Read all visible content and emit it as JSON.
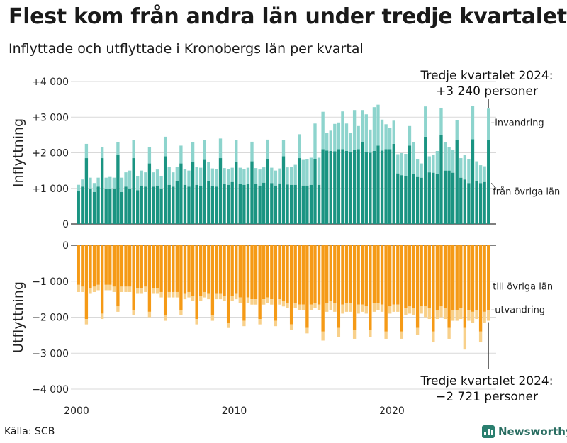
{
  "title": "Flest kom från andra län under tredje kvartalet",
  "subtitle": "Inflyttade och utflyttade i Kronobergs län per kvartal",
  "source": "Källa: SCB",
  "brand": "Newsworthy",
  "colors": {
    "in_other_counties": "#1a9482",
    "in_immigration": "#8dd4cd",
    "out_other_counties": "#f59a16",
    "out_emigration": "#f8d08a",
    "grid": "#d9d9d9"
  },
  "chart_data": {
    "type": "bar",
    "stacked": true,
    "x_start_year": 2000,
    "x_tick_labels": [
      "2000",
      "2010",
      "2020"
    ],
    "panels": [
      {
        "name": "Inflyttning",
        "ylabel": "Inflyttning",
        "ylim": [
          0,
          4000
        ],
        "y_ticks": [
          0,
          1000,
          2000,
          3000,
          4000
        ],
        "y_tick_labels": [
          "0",
          "+1 000",
          "+2 000",
          "+3 000",
          "+4 000"
        ],
        "series": [
          {
            "name": "från övriga län",
            "color": "#1a9482",
            "values": [
              920,
              1050,
              1850,
              1000,
              900,
              1050,
              1850,
              980,
              990,
              1000,
              1950,
              900,
              1050,
              1000,
              1850,
              950,
              1080,
              1050,
              1700,
              1050,
              1080,
              1000,
              1900,
              1100,
              1050,
              1200,
              1700,
              1100,
              1050,
              1750,
              1100,
              1080,
              1800,
              1200,
              1060,
              1050,
              1850,
              1120,
              1100,
              1180,
              1750,
              1130,
              1100,
              1130,
              1760,
              1120,
              1080,
              1160,
              1820,
              1150,
              1080,
              1140,
              1900,
              1110,
              1100,
              1100,
              1850,
              1080,
              1080,
              1100,
              1820,
              1100,
              2100,
              2060,
              2050,
              2040,
              2100,
              2100,
              2050,
              2010,
              2080,
              2100,
              2300,
              2020,
              2000,
              2050,
              2200,
              2060,
              2100,
              2100,
              2250,
              1420,
              1370,
              1340,
              2200,
              1400,
              1320,
              1300,
              2450,
              1450,
              1440,
              1400,
              2500,
              1500,
              1500,
              1440,
              2350,
              1300,
              1250,
              1150,
              2380,
              1200,
              1150,
              1180,
              2360
            ]
          },
          {
            "name": "invandring",
            "color": "#8dd4cd",
            "values": [
              180,
              200,
              400,
              300,
              250,
              250,
              300,
              320,
              330,
              300,
              350,
              400,
              400,
              500,
              500,
              400,
              420,
              400,
              450,
              400,
              450,
              350,
              550,
              500,
              400,
              400,
              500,
              450,
              450,
              550,
              500,
              500,
              550,
              550,
              500,
              500,
              550,
              450,
              450,
              400,
              600,
              450,
              450,
              450,
              550,
              450,
              450,
              430,
              550,
              430,
              420,
              420,
              450,
              480,
              500,
              560,
              670,
              720,
              750,
              760,
              1000,
              760,
              1050,
              500,
              570,
              770,
              750,
              1060,
              770,
              550,
              1120,
              650,
              900,
              1060,
              650,
              1230,
              1150,
              870,
              700,
              600,
              650,
              540,
              620,
              630,
              550,
              890,
              500,
              400,
              850,
              450,
              500,
              650,
              750,
              800,
              650,
              650,
              570,
              550,
              700,
              670,
              930,
              560,
              500,
              440,
              880
            ]
          }
        ],
        "annotations": [
          {
            "text": "invandring"
          },
          {
            "text": "från övriga län"
          }
        ],
        "callout": {
          "line1": "Tredje kvartalet 2024:",
          "line2": "+3 240 personer"
        }
      },
      {
        "name": "Utflyttning",
        "ylabel": "Utflyttning",
        "ylim": [
          -4000,
          0
        ],
        "y_ticks": [
          0,
          -1000,
          -2000,
          -3000,
          -4000
        ],
        "y_tick_labels": [
          "0",
          "−1 000",
          "−2 000",
          "−3 000",
          "−4 000"
        ],
        "series": [
          {
            "name": "till övriga län",
            "color": "#f59a16",
            "values": [
              -1100,
              -1150,
              -2050,
              -1200,
              -1150,
              -1100,
              -1900,
              -1100,
              -1100,
              -1150,
              -1700,
              -1150,
              -1150,
              -1150,
              -1800,
              -1200,
              -1200,
              -1150,
              -1850,
              -1200,
              -1200,
              -1300,
              -1950,
              -1300,
              -1300,
              -1300,
              -1800,
              -1350,
              -1300,
              -1400,
              -2050,
              -1400,
              -1300,
              -1350,
              -1950,
              -1350,
              -1350,
              -1400,
              -2150,
              -1400,
              -1350,
              -1450,
              -2100,
              -1450,
              -1500,
              -1500,
              -2050,
              -1500,
              -1450,
              -1500,
              -2100,
              -1500,
              -1550,
              -1600,
              -2200,
              -1600,
              -1650,
              -1650,
              -2300,
              -1650,
              -1600,
              -1650,
              -2400,
              -1600,
              -1550,
              -1600,
              -2300,
              -1650,
              -1600,
              -1600,
              -2350,
              -1650,
              -1650,
              -1700,
              -2350,
              -1600,
              -1600,
              -1650,
              -2400,
              -1700,
              -1650,
              -1650,
              -2400,
              -1750,
              -1700,
              -1750,
              -2300,
              -1700,
              -1700,
              -1750,
              -2400,
              -1800,
              -1700,
              -1750,
              -2300,
              -1800,
              -1800,
              -1750,
              -2300,
              -1800,
              -1850,
              -1800,
              -2400,
              -1850,
              -1800,
              -1750,
              -2300
            ]
          },
          {
            "name": "utvandring",
            "color": "#f8d08a",
            "values": [
              -200,
              -150,
              -150,
              -150,
              -150,
              -150,
              -150,
              -150,
              -150,
              -150,
              -150,
              -150,
              -150,
              -150,
              -150,
              -150,
              -150,
              -150,
              -150,
              -150,
              -150,
              -150,
              -150,
              -150,
              -150,
              -150,
              -150,
              -150,
              -150,
              -150,
              -150,
              -150,
              -150,
              -150,
              -150,
              -150,
              -150,
              -150,
              -150,
              -150,
              -150,
              -150,
              -150,
              -150,
              -150,
              -150,
              -150,
              -150,
              -150,
              -150,
              -150,
              -150,
              -150,
              -150,
              -150,
              -150,
              -150,
              -150,
              -150,
              -150,
              -150,
              -150,
              -250,
              -250,
              -250,
              -250,
              -250,
              -250,
              -250,
              -250,
              -250,
              -250,
              -200,
              -200,
              -200,
              -250,
              -200,
              -200,
              -200,
              -200,
              -200,
              -200,
              -200,
              -200,
              -200,
              -200,
              -200,
              -200,
              -300,
              -300,
              -300,
              -250,
              -300,
              -300,
              -300,
              -300,
              -300,
              -300,
              -600,
              -300,
              -300,
              -250,
              -300,
              -300,
              -300,
              -300,
              -421
            ]
          }
        ],
        "annotations": [
          {
            "text": "till övriga län"
          },
          {
            "text": "utvandring"
          }
        ],
        "callout": {
          "line1": "Tredje kvartalet 2024:",
          "line2": "−2 721 personer"
        }
      }
    ]
  }
}
